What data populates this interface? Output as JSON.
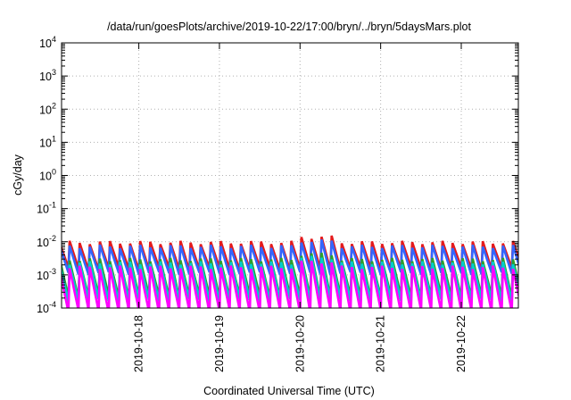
{
  "chart_data": {
    "type": "line",
    "title": "/data/run/goesPlots/archive/2019-10-22/17:00/bryn/../bryn/5daysMars.plot",
    "xlabel": "Coordinated Universal Time (UTC)",
    "ylabel": "cGy/day",
    "y_scale": "log",
    "ylim": [
      0.0001,
      10000
    ],
    "y_ticks": [
      {
        "base": "10",
        "exp": "-4",
        "value": 0.0001
      },
      {
        "base": "10",
        "exp": "-3",
        "value": 0.001
      },
      {
        "base": "10",
        "exp": "-2",
        "value": 0.01
      },
      {
        "base": "10",
        "exp": "-1",
        "value": 0.1
      },
      {
        "base": "10",
        "exp": "0",
        "value": 1
      },
      {
        "base": "10",
        "exp": "1",
        "value": 10
      },
      {
        "base": "10",
        "exp": "2",
        "value": 100
      },
      {
        "base": "10",
        "exp": "3",
        "value": 1000
      },
      {
        "base": "10",
        "exp": "4",
        "value": 10000
      }
    ],
    "xlim": [
      "2019-10-17T01:00",
      "2019-10-22T17:00"
    ],
    "x_ticks": [
      "2019-10-18",
      "2019-10-19",
      "2019-10-20",
      "2019-10-21",
      "2019-10-22"
    ],
    "grid": true,
    "legend": "none",
    "series": [
      {
        "color": "#e41a1c",
        "peak": 0.0095,
        "trough": 0.0015
      },
      {
        "color": "#3366ff",
        "peak": 0.0072,
        "trough": 0.0011
      },
      {
        "color": "#2ca02c",
        "peak": 0.0029,
        "trough": 0.00022
      },
      {
        "color": "#00cccc",
        "peak": 0.0023,
        "trough": 0.00017
      },
      {
        "color": "#ff00ff",
        "peak": 0.0017,
        "trough": 8e-05
      }
    ],
    "cycle_hours": 3,
    "elevated_period": [
      "2019-10-19T23:00",
      "2019-10-20T11:00"
    ]
  }
}
